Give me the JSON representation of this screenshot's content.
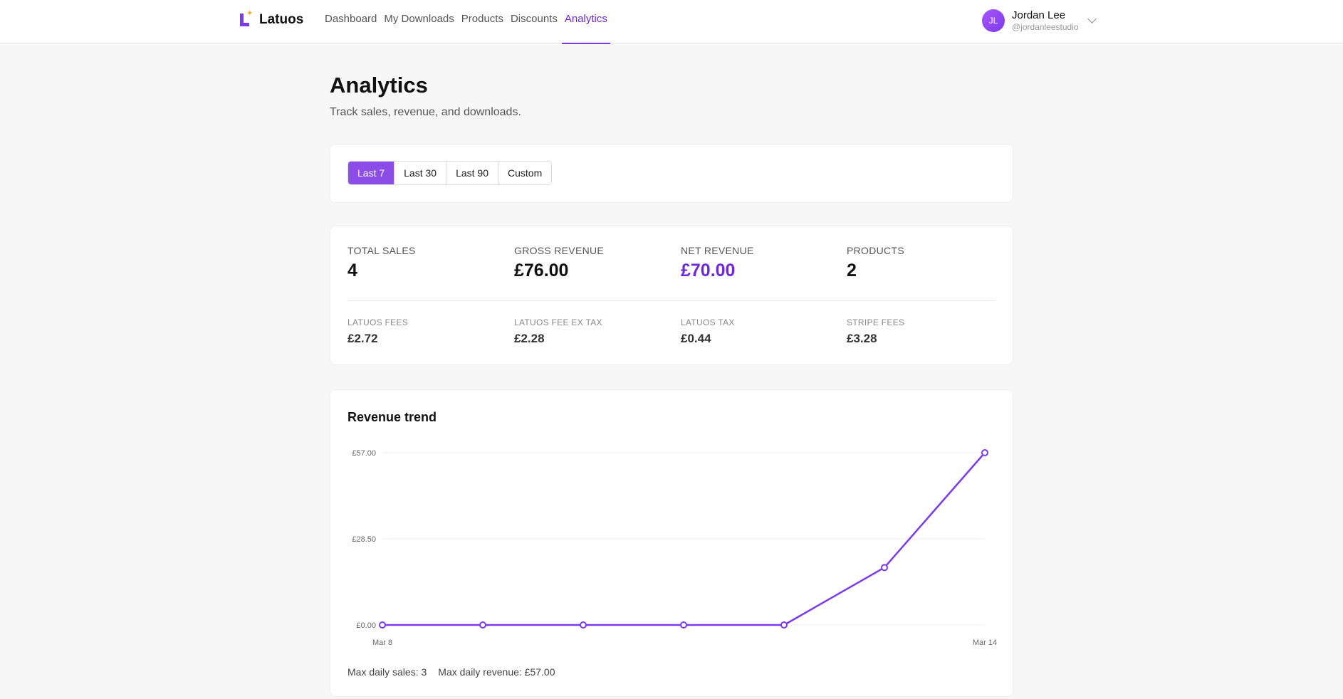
{
  "header": {
    "brand": "Latuos",
    "nav": [
      {
        "label": "Dashboard",
        "active": false
      },
      {
        "label": "My Downloads",
        "active": false
      },
      {
        "label": "Products",
        "active": false
      },
      {
        "label": "Discounts",
        "active": false
      },
      {
        "label": "Analytics",
        "active": true
      }
    ],
    "user": {
      "initials": "JL",
      "name": "Jordan Lee",
      "handle": "@jordanleestudio"
    }
  },
  "page": {
    "title": "Analytics",
    "subtitle": "Track sales, revenue, and downloads."
  },
  "range": {
    "options": [
      "Last 7",
      "Last 30",
      "Last 90",
      "Custom"
    ],
    "selected": "Last 7"
  },
  "stats": {
    "total_sales": {
      "label": "TOTAL SALES",
      "value": "4"
    },
    "gross_revenue": {
      "label": "GROSS REVENUE",
      "value": "£76.00"
    },
    "net_revenue": {
      "label": "NET REVENUE",
      "value": "£70.00"
    },
    "products": {
      "label": "PRODUCTS",
      "value": "2"
    },
    "latuos_fees": {
      "label": "LATUOS FEES",
      "value": "£2.72"
    },
    "latuos_fee_ex_tax": {
      "label": "LATUOS FEE EX TAX",
      "value": "£2.28"
    },
    "latuos_tax": {
      "label": "LATUOS TAX",
      "value": "£0.44"
    },
    "stripe_fees": {
      "label": "STRIPE FEES",
      "value": "£3.28"
    }
  },
  "chart": {
    "title": "Revenue trend",
    "footer": {
      "max_daily_sales": "Max daily sales: 3",
      "max_daily_revenue": "Max daily revenue: £57.00"
    }
  },
  "colors": {
    "accent": "#7c3aed",
    "accent_button": "#8b4ce8"
  },
  "chart_data": {
    "type": "line",
    "x": [
      "Mar 8",
      "Mar 9",
      "Mar 10",
      "Mar 11",
      "Mar 12",
      "Mar 13",
      "Mar 14"
    ],
    "x_tick_labels": [
      "Mar 8",
      "Mar 14"
    ],
    "series": [
      {
        "values": [
          0,
          0,
          0,
          0,
          0,
          19,
          57
        ]
      }
    ],
    "y_ticks": [
      0,
      28.5,
      57
    ],
    "y_tick_labels": [
      "£0.00",
      "£28.50",
      "£57.00"
    ],
    "ylim": [
      0,
      57
    ],
    "grid": true,
    "color": "#7c3aed"
  }
}
